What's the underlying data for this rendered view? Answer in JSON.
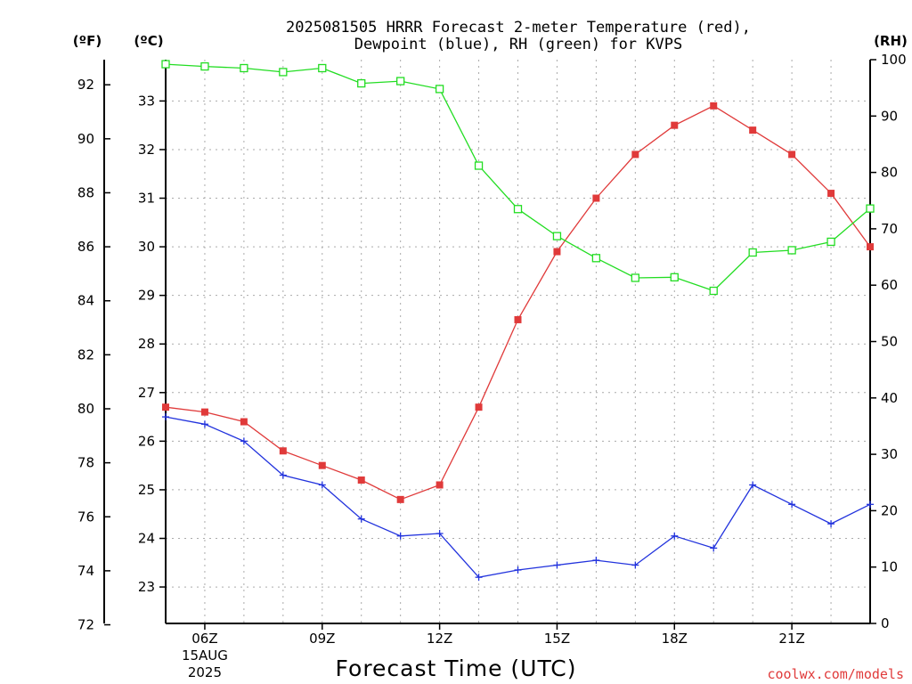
{
  "chart_data": {
    "type": "line",
    "title_line1": "2025081505 HRRR Forecast 2-meter Temperature (red),",
    "title_line2": "Dewpoint (blue), RH (green) for KVPS",
    "xlabel": "Forecast Time (UTC)",
    "credit": "coolwx.com/models",
    "unit_f": "(ºF)",
    "unit_c": "(ºC)",
    "unit_rh": "(RH)",
    "x_start_hour": 5,
    "x_end_hour": 23,
    "x_ticks": [
      {
        "hour": 6,
        "label": "06Z",
        "date_line1": "15AUG",
        "date_line2": "2025"
      },
      {
        "hour": 9,
        "label": "09Z"
      },
      {
        "hour": 12,
        "label": "12Z"
      },
      {
        "hour": 15,
        "label": "15Z"
      },
      {
        "hour": 18,
        "label": "18Z"
      },
      {
        "hour": 21,
        "label": "21Z"
      }
    ],
    "ylim_c": [
      22.25,
      33.85
    ],
    "yticks_c": [
      23,
      24,
      25,
      26,
      27,
      28,
      29,
      30,
      31,
      32,
      33
    ],
    "yticks_f": [
      72,
      74,
      76,
      78,
      80,
      82,
      84,
      86,
      88,
      90,
      92
    ],
    "ylim_rh": [
      0,
      100
    ],
    "yticks_rh": [
      0,
      10,
      20,
      30,
      40,
      50,
      60,
      70,
      80,
      90,
      100
    ],
    "grid": true,
    "series": [
      {
        "name": "Temperature",
        "color": "#e03a3a",
        "marker": "filled-square",
        "axis": "c",
        "x_hours": [
          5,
          6,
          7,
          8,
          9,
          10,
          11,
          12,
          13,
          14,
          15,
          16,
          17,
          18,
          19,
          20,
          21,
          22,
          23
        ],
        "values": [
          26.7,
          26.6,
          26.4,
          25.8,
          25.5,
          25.2,
          24.8,
          25.1,
          26.7,
          28.5,
          29.9,
          31.0,
          31.9,
          32.5,
          32.9,
          32.4,
          31.9,
          31.1,
          30.0
        ]
      },
      {
        "name": "Dewpoint",
        "color": "#2233dd",
        "marker": "plus",
        "axis": "c",
        "x_hours": [
          5,
          6,
          7,
          8,
          9,
          10,
          11,
          12,
          13,
          14,
          15,
          16,
          17,
          18,
          19,
          20,
          21,
          22,
          23
        ],
        "values": [
          26.5,
          26.35,
          26.0,
          25.3,
          25.1,
          24.4,
          24.05,
          24.1,
          23.2,
          23.35,
          23.45,
          23.55,
          23.45,
          24.05,
          23.8,
          25.1,
          24.7,
          24.3,
          24.7
        ]
      },
      {
        "name": "RH",
        "color": "#22dd22",
        "marker": "open-square",
        "axis": "rh",
        "x_hours": [
          5,
          6,
          7,
          8,
          9,
          10,
          11,
          12,
          13,
          14,
          15,
          16,
          17,
          18,
          19,
          20,
          21,
          22,
          23
        ],
        "values": [
          99.2,
          98.8,
          98.5,
          97.8,
          98.5,
          95.8,
          96.2,
          94.8,
          81.2,
          73.5,
          68.7,
          64.8,
          61.3,
          61.4,
          59.0,
          65.8,
          66.2,
          67.7,
          73.6
        ]
      }
    ]
  }
}
